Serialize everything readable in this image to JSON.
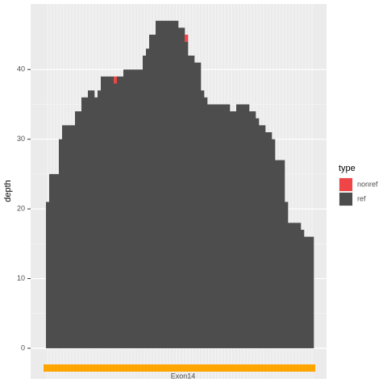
{
  "chart_data": {
    "type": "bar",
    "stacked": true,
    "y_label": "depth",
    "legend_title": "type",
    "legend_position": "right",
    "grid": true,
    "annotation": "Exon14",
    "x": [
      1,
      2,
      3,
      4,
      5,
      6,
      7,
      8,
      9,
      10,
      11,
      12,
      13,
      14,
      15,
      16,
      17,
      18,
      19,
      20,
      21,
      22,
      23,
      24,
      25,
      26,
      27,
      28,
      29,
      30,
      31,
      32,
      33,
      34,
      35,
      36,
      37,
      38,
      39,
      40,
      41,
      42,
      43,
      44,
      45,
      46,
      47,
      48,
      49,
      50,
      51,
      52,
      53,
      54,
      55,
      56,
      57,
      58,
      59,
      60,
      61,
      62,
      63,
      64,
      65,
      66,
      67,
      68,
      69,
      70,
      71,
      72,
      73,
      74,
      75,
      76,
      77,
      78,
      79,
      80,
      81,
      82,
      83
    ],
    "xlim": [
      -4.25,
      87.5
    ],
    "ylim": [
      -4.4,
      49.4
    ],
    "yticks": [
      0,
      10,
      20,
      30,
      40
    ],
    "series": [
      {
        "name": "ref",
        "color": "#4d4d4d",
        "values": [
          21,
          25,
          25,
          25,
          30,
          32,
          32,
          32,
          32,
          34,
          34,
          36,
          36,
          37,
          37,
          36,
          37,
          39,
          39,
          39,
          39,
          38,
          39,
          39,
          40,
          40,
          40,
          40,
          40,
          40,
          42,
          43,
          45,
          45,
          47,
          47,
          47,
          47,
          47,
          47,
          47,
          46,
          46,
          44,
          42,
          42,
          41,
          41,
          37,
          36,
          35,
          35,
          35,
          35,
          35,
          35,
          35,
          34,
          34,
          35,
          35,
          35,
          35,
          34,
          34,
          33,
          32,
          32,
          31,
          31,
          30,
          27,
          27,
          27,
          21,
          18,
          18,
          18,
          18,
          17,
          16,
          16,
          16
        ]
      },
      {
        "name": "nonref",
        "color": "#f04546",
        "values": [
          0,
          0,
          0,
          0,
          0,
          0,
          0,
          0,
          0,
          0,
          0,
          0,
          0,
          0,
          0,
          0,
          0,
          0,
          0,
          0,
          0,
          1,
          0,
          0,
          0,
          0,
          0,
          0,
          0,
          0,
          0,
          0,
          0,
          0,
          0,
          0,
          0,
          0,
          0,
          0,
          0,
          0,
          0,
          1,
          0,
          0,
          0,
          0,
          0,
          0,
          0,
          0,
          0,
          0,
          0,
          0,
          0,
          0,
          0,
          0,
          0,
          0,
          0,
          0,
          0,
          0,
          0,
          0,
          0,
          0,
          0,
          0,
          0,
          0,
          0,
          0,
          0,
          0,
          0,
          0,
          0,
          0,
          0
        ]
      }
    ]
  }
}
